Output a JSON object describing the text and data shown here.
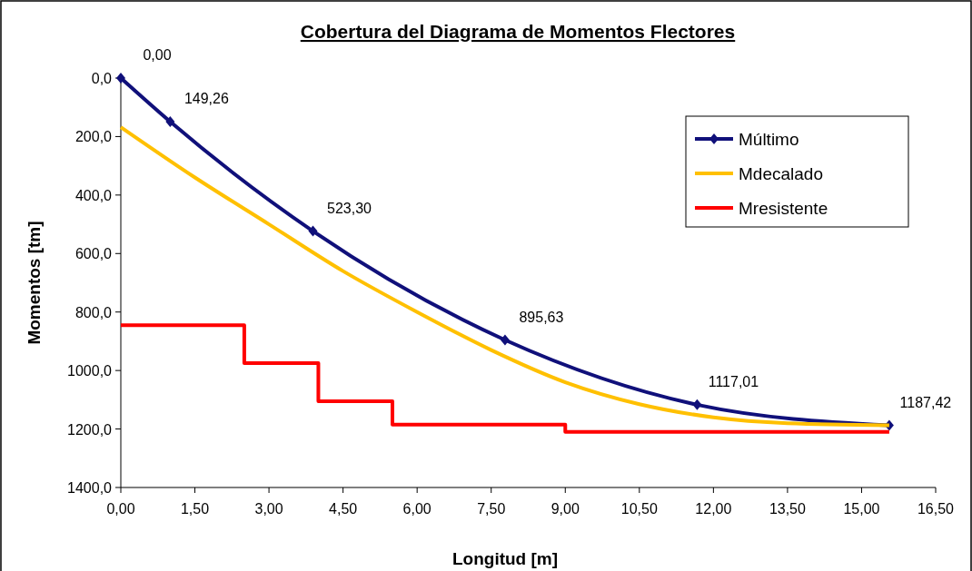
{
  "chart_data": {
    "type": "line",
    "title": "Cobertura del Diagrama de Momentos Flectores",
    "xlabel": "Longitud [m]",
    "ylabel": "Momentos [tm]",
    "xlim": [
      0,
      16.5
    ],
    "xticks": [
      {
        "value": 0,
        "label": "0,00"
      },
      {
        "value": 1.5,
        "label": "1,50"
      },
      {
        "value": 3,
        "label": "3,00"
      },
      {
        "value": 4.5,
        "label": "4,50"
      },
      {
        "value": 6,
        "label": "6,00"
      },
      {
        "value": 7.5,
        "label": "7,50"
      },
      {
        "value": 9,
        "label": "9,00"
      },
      {
        "value": 10.5,
        "label": "10,50"
      },
      {
        "value": 12,
        "label": "12,00"
      },
      {
        "value": 13.5,
        "label": "13,50"
      },
      {
        "value": 15,
        "label": "15,00"
      },
      {
        "value": 16.5,
        "label": "16,50"
      }
    ],
    "ylim": [
      1400,
      0
    ],
    "yticks": [
      {
        "value": 0,
        "label": "0,0"
      },
      {
        "value": 200,
        "label": "200,0"
      },
      {
        "value": 400,
        "label": "400,0"
      },
      {
        "value": 600,
        "label": "600,0"
      },
      {
        "value": 800,
        "label": "800,0"
      },
      {
        "value": 1000,
        "label": "1000,0"
      },
      {
        "value": 1200,
        "label": "1200,0"
      },
      {
        "value": 1400,
        "label": "1400,0"
      }
    ],
    "grid": false,
    "legend": "top right",
    "line_style": "solid",
    "series": [
      {
        "name": "Múltimo",
        "color": "#10107a",
        "marker": "diamond",
        "x": [
          0,
          1.0,
          3.89,
          7.78,
          11.67,
          15.56
        ],
        "values": [
          0,
          149.26,
          523.3,
          895.63,
          1117.01,
          1187.42
        ],
        "value_labels": [
          "0,00",
          "149,26",
          "523,30",
          "895,63",
          "1117,01",
          "1187,42"
        ]
      },
      {
        "name": "Mdecalado",
        "color": "#ffc000",
        "marker": "none",
        "x": [
          0,
          1.5,
          3,
          4.5,
          6,
          7.5,
          9,
          10.5,
          12,
          13.5,
          15.56
        ],
        "values": [
          168,
          340,
          500,
          660,
          800,
          930,
          1040,
          1115,
          1160,
          1180,
          1187
        ]
      },
      {
        "name": "Mresistente",
        "type": "step",
        "color": "#ff0000",
        "marker": "none",
        "x": [
          0,
          2.5,
          4,
          5.5,
          9,
          15.56
        ],
        "values": [
          845,
          975,
          1105,
          1185,
          1210,
          1210
        ]
      }
    ]
  }
}
